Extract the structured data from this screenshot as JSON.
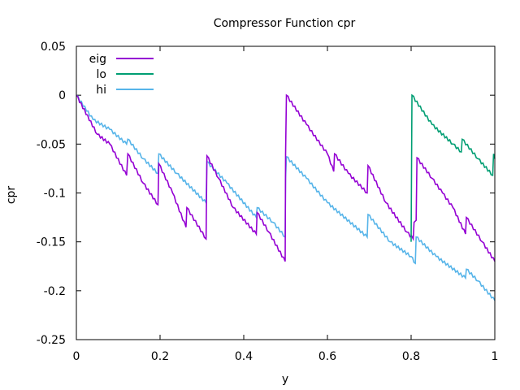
{
  "chart_data": {
    "type": "line",
    "title": "Compressor Function cpr",
    "xlabel": "y",
    "ylabel": "cpr",
    "xlim": [
      0,
      1
    ],
    "ylim": [
      -0.25,
      0.05
    ],
    "xticks": [
      0,
      0.2,
      0.4,
      0.6,
      0.8,
      1
    ],
    "xtick_labels": [
      "0",
      "0.2",
      "0.4",
      "0.6",
      "0.8",
      "1"
    ],
    "yticks": [
      0.05,
      0,
      -0.05,
      -0.1,
      -0.15,
      -0.2,
      -0.25
    ],
    "ytick_labels": [
      "0.05",
      "0",
      "-0.05",
      "-0.1",
      "-0.15",
      "-0.2",
      "-0.25"
    ],
    "legend_position": "top-left",
    "series": [
      {
        "name": "eig",
        "color": "#9400d3",
        "points": [
          [
            0.0,
            0.0
          ],
          [
            0.05,
            -0.04
          ],
          [
            0.08,
            -0.05
          ],
          [
            0.12,
            -0.082
          ],
          [
            0.123,
            -0.06
          ],
          [
            0.16,
            -0.09
          ],
          [
            0.195,
            -0.112
          ],
          [
            0.197,
            -0.07
          ],
          [
            0.23,
            -0.1
          ],
          [
            0.262,
            -0.135
          ],
          [
            0.264,
            -0.115
          ],
          [
            0.31,
            -0.147
          ],
          [
            0.312,
            -0.062
          ],
          [
            0.34,
            -0.085
          ],
          [
            0.375,
            -0.115
          ],
          [
            0.43,
            -0.142
          ],
          [
            0.432,
            -0.12
          ],
          [
            0.46,
            -0.14
          ],
          [
            0.499,
            -0.17
          ],
          [
            0.5,
            -0.06
          ],
          [
            0.502,
            0.0
          ],
          [
            0.55,
            -0.03
          ],
          [
            0.6,
            -0.06
          ],
          [
            0.615,
            -0.078
          ],
          [
            0.617,
            -0.06
          ],
          [
            0.65,
            -0.08
          ],
          [
            0.695,
            -0.1
          ],
          [
            0.697,
            -0.072
          ],
          [
            0.74,
            -0.11
          ],
          [
            0.79,
            -0.14
          ],
          [
            0.805,
            -0.147
          ],
          [
            0.807,
            -0.13
          ],
          [
            0.812,
            -0.128
          ],
          [
            0.814,
            -0.064
          ],
          [
            0.85,
            -0.085
          ],
          [
            0.875,
            -0.1
          ],
          [
            0.9,
            -0.115
          ],
          [
            0.93,
            -0.142
          ],
          [
            0.932,
            -0.125
          ],
          [
            0.97,
            -0.15
          ],
          [
            1.0,
            -0.17
          ]
        ]
      },
      {
        "name": "lo",
        "color": "#009e73",
        "points": [
          [
            0.8,
            -0.15
          ],
          [
            0.802,
            0.0
          ],
          [
            0.85,
            -0.03
          ],
          [
            0.9,
            -0.05
          ],
          [
            0.92,
            -0.058
          ],
          [
            0.922,
            -0.045
          ],
          [
            0.96,
            -0.065
          ],
          [
            0.995,
            -0.082
          ],
          [
            0.997,
            -0.06
          ],
          [
            1.0,
            -0.065
          ]
        ]
      },
      {
        "name": "hi",
        "color": "#56b4e9",
        "points": [
          [
            0.0,
            0.0
          ],
          [
            0.04,
            -0.025
          ],
          [
            0.08,
            -0.035
          ],
          [
            0.12,
            -0.05
          ],
          [
            0.123,
            -0.045
          ],
          [
            0.16,
            -0.065
          ],
          [
            0.195,
            -0.08
          ],
          [
            0.197,
            -0.06
          ],
          [
            0.24,
            -0.08
          ],
          [
            0.31,
            -0.11
          ],
          [
            0.312,
            -0.068
          ],
          [
            0.36,
            -0.09
          ],
          [
            0.43,
            -0.125
          ],
          [
            0.432,
            -0.115
          ],
          [
            0.47,
            -0.13
          ],
          [
            0.499,
            -0.145
          ],
          [
            0.5,
            -0.085
          ],
          [
            0.502,
            -0.063
          ],
          [
            0.55,
            -0.085
          ],
          [
            0.6,
            -0.11
          ],
          [
            0.695,
            -0.145
          ],
          [
            0.697,
            -0.122
          ],
          [
            0.75,
            -0.15
          ],
          [
            0.8,
            -0.165
          ],
          [
            0.81,
            -0.172
          ],
          [
            0.812,
            -0.145
          ],
          [
            0.86,
            -0.165
          ],
          [
            0.93,
            -0.187
          ],
          [
            0.932,
            -0.178
          ],
          [
            0.96,
            -0.19
          ],
          [
            1.0,
            -0.21
          ]
        ]
      }
    ]
  }
}
